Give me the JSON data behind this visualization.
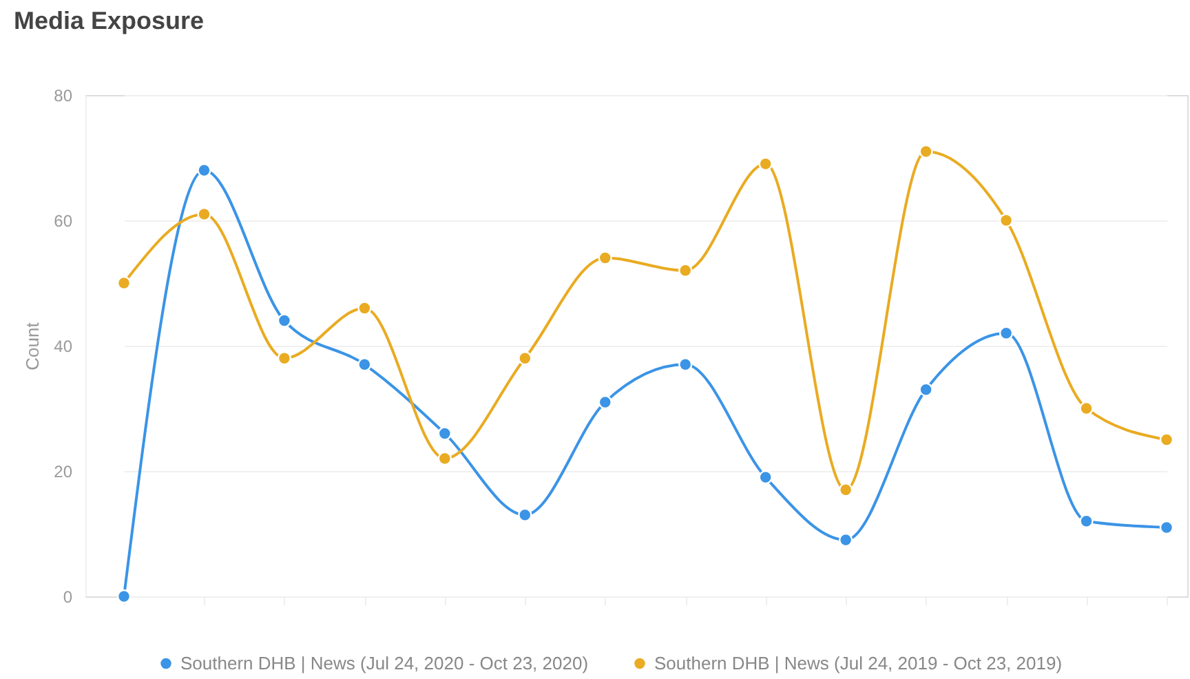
{
  "chart_data": {
    "type": "line",
    "title": "Media Exposure",
    "ylabel": "Count",
    "categories": [
      null,
      null,
      null,
      null,
      null,
      null,
      null,
      null,
      null,
      null,
      null,
      null,
      null,
      null
    ],
    "series": [
      {
        "name": "Southern DHB | News (Jul 24, 2020 - Oct 23, 2020)",
        "color": "#3b94e6",
        "values": [
          0,
          68,
          44,
          37,
          26,
          13,
          31,
          37,
          19,
          9,
          33,
          42,
          12,
          11
        ]
      },
      {
        "name": "Southern DHB | News (Jul 24, 2019 - Oct 23, 2019)",
        "color": "#e9ab22",
        "values": [
          50,
          61,
          38,
          46,
          22,
          38,
          54,
          52,
          69,
          17,
          71,
          60,
          30,
          25
        ]
      }
    ],
    "ylim": [
      0,
      80
    ],
    "yticks": [
      0,
      20,
      40,
      60,
      80
    ],
    "grid": "y",
    "legend": "bottom",
    "marker": "circle",
    "line_style": "solid",
    "tick_labels": "y"
  }
}
